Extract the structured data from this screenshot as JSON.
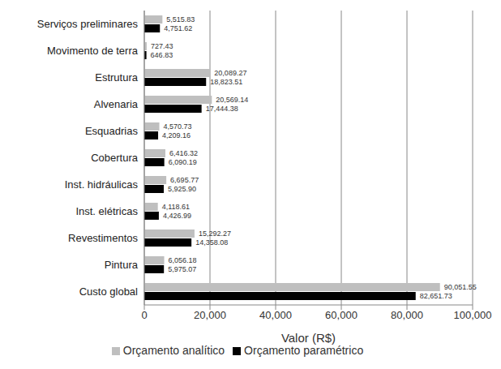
{
  "chart_data": {
    "type": "bar",
    "orientation": "horizontal",
    "categories": [
      "Serviços preliminares",
      "Movimento de terra",
      "Estrutura",
      "Alvenaria",
      "Esquadrias",
      "Cobertura",
      "Inst. hidráulicas",
      "Inst. elétricas",
      "Revestimentos",
      "Pintura",
      "Custo global"
    ],
    "series": [
      {
        "name": "Orçamento analítico",
        "color": "#bfbfbf",
        "values": [
          5515.83,
          727.43,
          20089.27,
          20569.14,
          4570.73,
          6416.32,
          6695.77,
          4118.61,
          15292.27,
          6056.18,
          90051.55
        ],
        "value_labels": [
          "5,515.83",
          "727.43",
          "20,089.27",
          "20,569.14",
          "4,570.73",
          "6,416.32",
          "6,695.77",
          "4,118.61",
          "15,292.27",
          "6,056.18",
          "90,051.55"
        ]
      },
      {
        "name": "Orçamento paramétrico",
        "color": "#000000",
        "values": [
          4751.62,
          646.83,
          18823.51,
          17444.38,
          4209.16,
          6090.19,
          5925.9,
          4426.99,
          14358.08,
          5975.07,
          82651.73
        ],
        "value_labels": [
          "4,751.62",
          "646.83",
          "18,823.51",
          "17,444.38",
          "4,209.16",
          "6,090.19",
          "5,925.90",
          "4,426.99",
          "14,358.08",
          "5,975.07",
          "82,651.73"
        ]
      }
    ],
    "xlabel": "Valor (R$)",
    "xlim": [
      0,
      100000
    ],
    "xticks": [
      0,
      {
        "value": 20000,
        "label": "20,000"
      },
      {
        "value": 40000,
        "label": "40,000"
      },
      {
        "value": 60000,
        "label": "60,000"
      },
      {
        "value": 80000,
        "label": "80,000"
      },
      {
        "value": 100000,
        "label": "100,000"
      }
    ],
    "grid": true,
    "legend": "bottom",
    "data_labels": true
  }
}
